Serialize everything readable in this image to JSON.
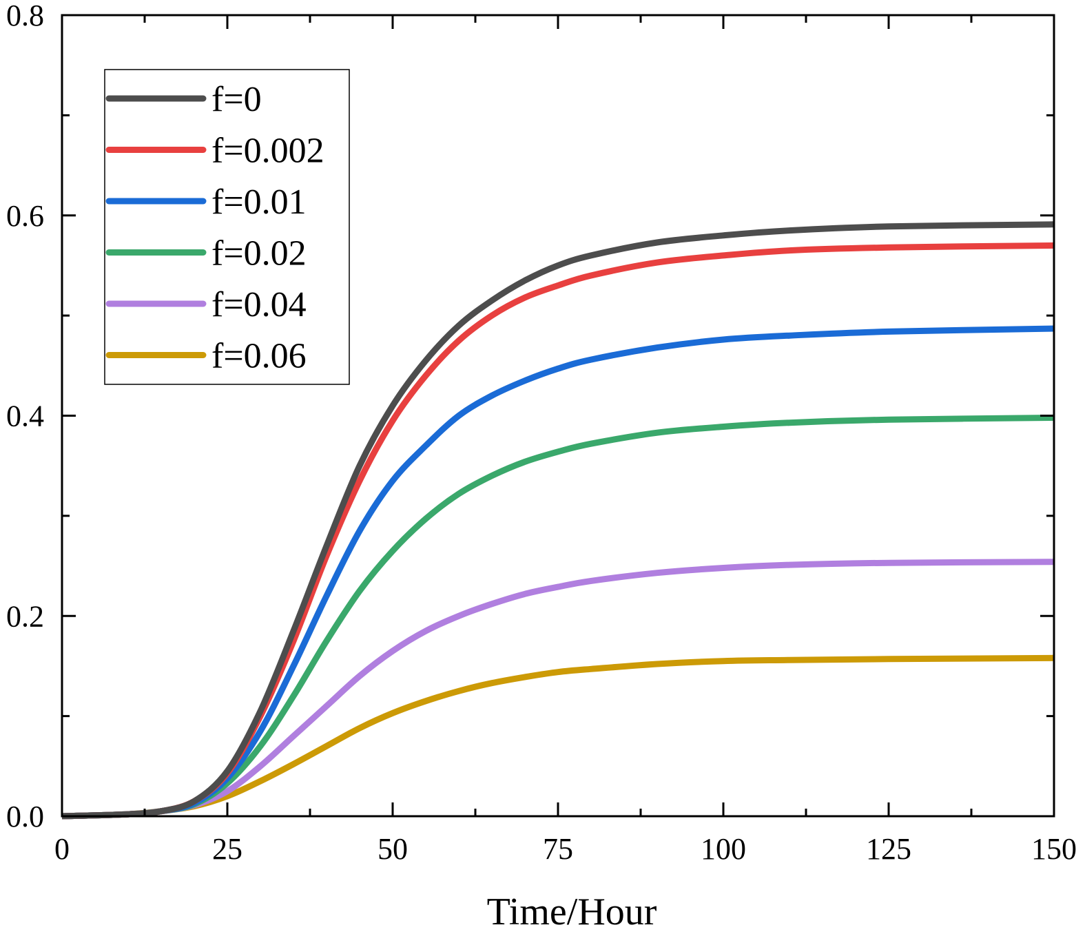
{
  "chart_data": {
    "type": "line",
    "title": "",
    "xlabel": "Time/Hour",
    "ylabel": "",
    "xlim": [
      0,
      150
    ],
    "ylim": [
      0,
      0.8
    ],
    "x_ticks": [
      0,
      25,
      50,
      75,
      100,
      125,
      150
    ],
    "x_tick_labels": [
      "0",
      "25",
      "50",
      "75",
      "100",
      "125",
      "150"
    ],
    "y_ticks": [
      0,
      0.2,
      0.4,
      0.6,
      0.8
    ],
    "y_tick_labels": [
      "0.0",
      "0.2",
      "0.4",
      "0.6",
      "0.8"
    ],
    "grid": false,
    "legend_position": "top-left",
    "x": [
      0,
      10,
      15,
      20,
      25,
      30,
      35,
      40,
      45,
      50,
      55,
      60,
      65,
      70,
      75,
      80,
      90,
      100,
      110,
      125,
      150
    ],
    "series": [
      {
        "name": "f=0",
        "color": "#4d4d4d",
        "values": [
          0,
          0.002,
          0.005,
          0.015,
          0.045,
          0.105,
          0.185,
          0.27,
          0.35,
          0.41,
          0.455,
          0.49,
          0.515,
          0.535,
          0.55,
          0.56,
          0.573,
          0.58,
          0.585,
          0.589,
          0.591
        ]
      },
      {
        "name": "f=0.002",
        "color": "#e8403f",
        "values": [
          0,
          0.002,
          0.005,
          0.015,
          0.043,
          0.1,
          0.175,
          0.26,
          0.335,
          0.395,
          0.44,
          0.475,
          0.5,
          0.518,
          0.53,
          0.54,
          0.553,
          0.56,
          0.565,
          0.568,
          0.57
        ]
      },
      {
        "name": "f=0.01",
        "color": "#1a6bd6",
        "values": [
          0,
          0.002,
          0.005,
          0.013,
          0.038,
          0.085,
          0.15,
          0.22,
          0.285,
          0.335,
          0.37,
          0.4,
          0.42,
          0.435,
          0.447,
          0.456,
          0.468,
          0.476,
          0.48,
          0.484,
          0.487
        ]
      },
      {
        "name": "f=0.02",
        "color": "#3aa86b",
        "values": [
          0,
          0.002,
          0.005,
          0.012,
          0.033,
          0.07,
          0.12,
          0.175,
          0.225,
          0.265,
          0.297,
          0.322,
          0.34,
          0.354,
          0.364,
          0.372,
          0.383,
          0.389,
          0.393,
          0.396,
          0.398
        ]
      },
      {
        "name": "f=0.04",
        "color": "#b07fdf",
        "values": [
          0,
          0.002,
          0.005,
          0.011,
          0.025,
          0.05,
          0.08,
          0.11,
          0.14,
          0.165,
          0.185,
          0.2,
          0.212,
          0.222,
          0.229,
          0.235,
          0.243,
          0.248,
          0.251,
          0.253,
          0.254
        ]
      },
      {
        "name": "f=0.06",
        "color": "#cc9a06",
        "values": [
          0,
          0.002,
          0.005,
          0.01,
          0.02,
          0.035,
          0.052,
          0.07,
          0.088,
          0.103,
          0.115,
          0.125,
          0.133,
          0.139,
          0.144,
          0.147,
          0.152,
          0.155,
          0.156,
          0.157,
          0.158
        ]
      }
    ]
  }
}
